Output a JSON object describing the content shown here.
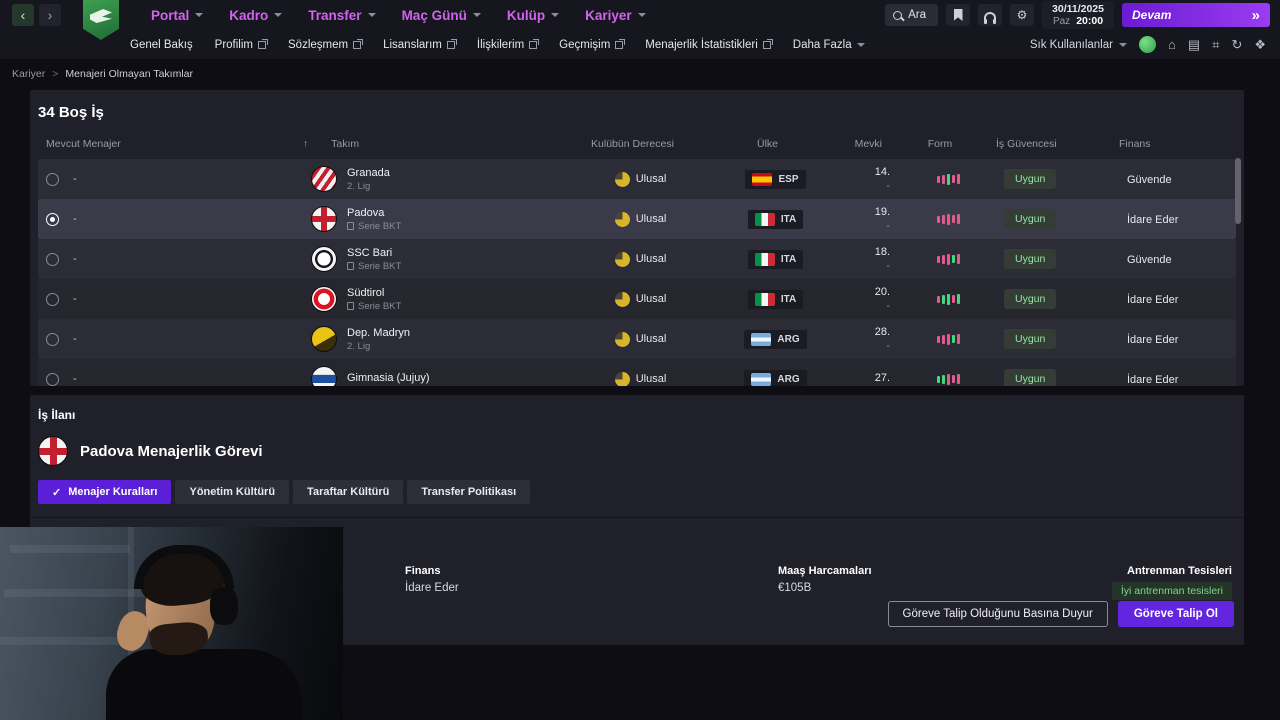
{
  "icons": {
    "back": "‹",
    "forward": "›",
    "continue_arrows": "»",
    "sort_asc": "↑",
    "breadcrumb_sep": ">",
    "check": "✓",
    "gear": "⚙",
    "home": "⌂",
    "panels": "▤",
    "grid": "⌗",
    "sync": "↻",
    "award": "❖"
  },
  "topbar": {
    "menus": [
      "Portal",
      "Kadro",
      "Transfer",
      "Maç Günü",
      "Kulüp",
      "Kariyer"
    ],
    "search_label": "Ara",
    "date": "30/11/2025",
    "day": "Paz",
    "time": "20:00",
    "continue_label": "Devam"
  },
  "subnav": {
    "items": [
      {
        "label": "Genel Bakış"
      },
      {
        "label": "Profilim"
      },
      {
        "label": "Sözleşmem"
      },
      {
        "label": "Lisanslarım"
      },
      {
        "label": "İlişkilerim"
      },
      {
        "label": "Geçmişim"
      },
      {
        "label": "Menajerlik İstatistikleri"
      }
    ],
    "more_label": "Daha Fazla",
    "favorites_label": "Sık Kullanılanlar"
  },
  "breadcrumb": {
    "parent": "Kariyer",
    "current": "Menajeri Olmayan Takımlar"
  },
  "jobs": {
    "title": "34 Boş İş",
    "columns": {
      "manager": "Mevcut Menajer",
      "team": "Takım",
      "rating": "Kulübün Derecesi",
      "country": "Ülke",
      "position": "Mevki",
      "form": "Form",
      "security": "İş Güvencesi",
      "finance": "Finans"
    },
    "rows": [
      {
        "manager": "-",
        "team": "Granada",
        "league": "2. Lig",
        "league_icon": false,
        "logo": "granada",
        "rating": "Ulusal",
        "country": "ESP",
        "flag": "esp",
        "pos1": "14.",
        "pos2": "-",
        "form": [
          "p",
          "p",
          "g",
          "p",
          "p"
        ],
        "security": "Uygun",
        "finance": "Güvende",
        "selected": false
      },
      {
        "manager": "-",
        "team": "Padova",
        "league": "Serie BKT",
        "league_icon": true,
        "logo": "padova",
        "rating": "Ulusal",
        "country": "ITA",
        "flag": "ita",
        "pos1": "19.",
        "pos2": "-",
        "form": [
          "p",
          "p",
          "p",
          "p",
          "p"
        ],
        "security": "Uygun",
        "finance": "İdare Eder",
        "selected": true
      },
      {
        "manager": "-",
        "team": "SSC Bari",
        "league": "Serie BKT",
        "league_icon": true,
        "logo": "bari",
        "rating": "Ulusal",
        "country": "ITA",
        "flag": "ita",
        "pos1": "18.",
        "pos2": "-",
        "form": [
          "p",
          "p",
          "p",
          "g",
          "p"
        ],
        "security": "Uygun",
        "finance": "Güvende",
        "selected": false
      },
      {
        "manager": "-",
        "team": "Südtirol",
        "league": "Serie BKT",
        "league_icon": true,
        "logo": "sudtirol",
        "rating": "Ulusal",
        "country": "ITA",
        "flag": "ita",
        "pos1": "20.",
        "pos2": "-",
        "form": [
          "p",
          "g",
          "g",
          "p",
          "g"
        ],
        "security": "Uygun",
        "finance": "İdare Eder",
        "selected": false
      },
      {
        "manager": "-",
        "team": "Dep. Madryn",
        "league": "2. Lig",
        "league_icon": false,
        "logo": "madryn",
        "rating": "Ulusal",
        "country": "ARG",
        "flag": "arg",
        "pos1": "28.",
        "pos2": "-",
        "form": [
          "p",
          "p",
          "p",
          "g",
          "p"
        ],
        "security": "Uygun",
        "finance": "İdare Eder",
        "selected": false
      },
      {
        "manager": "-",
        "team": "Gimnasia (Jujuy)",
        "league": "",
        "league_icon": false,
        "logo": "gimnasia",
        "rating": "Ulusal",
        "country": "ARG",
        "flag": "arg",
        "pos1": "27.",
        "pos2": "",
        "form": [
          "g",
          "g",
          "p",
          "p",
          "p"
        ],
        "security": "Uygun",
        "finance": "İdare Eder",
        "selected": false
      }
    ]
  },
  "job_ad": {
    "panel_title": "İş İlanı",
    "title": "Padova Menajerlik Görevi",
    "tabs": [
      {
        "label": "Menajer Kuralları",
        "active": true
      },
      {
        "label": "Yönetim Kültürü",
        "active": false
      },
      {
        "label": "Taraftar Kültürü",
        "active": false
      },
      {
        "label": "Transfer Politikası",
        "active": false
      }
    ],
    "fields": [
      {
        "label": "Finans",
        "value": "İdare Eder"
      },
      {
        "label": "Maaş Harcamaları",
        "value": "€105B"
      },
      {
        "label": "Antrenman Tesisleri",
        "value": "İyi antrenman tesisleri"
      }
    ],
    "announce_button": "Göreve Talip Olduğunu Basına Duyur",
    "apply_button": "Göreve Talip Ol"
  }
}
